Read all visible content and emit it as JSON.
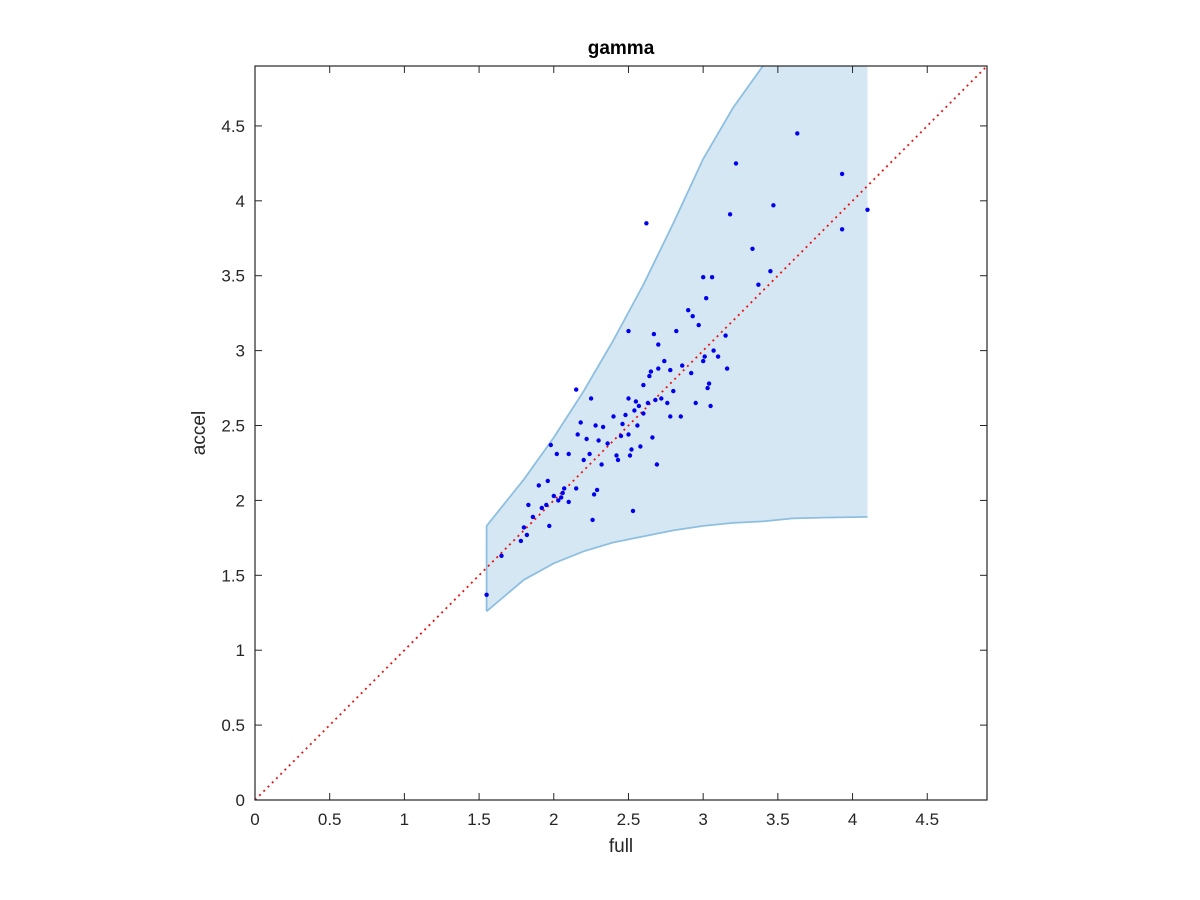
{
  "chart_data": {
    "type": "scatter",
    "title": "gamma",
    "xlabel": "full",
    "ylabel": "accel",
    "xlim": [
      0,
      4.9
    ],
    "ylim": [
      0,
      4.9
    ],
    "x_ticks": [
      0,
      0.5,
      1,
      1.5,
      2,
      2.5,
      3,
      3.5,
      4,
      4.5
    ],
    "y_ticks": [
      0,
      0.5,
      1,
      1.5,
      2,
      2.5,
      3,
      3.5,
      4,
      4.5
    ],
    "x_tick_labels": [
      "0",
      "0.5",
      "1",
      "1.5",
      "2",
      "2.5",
      "3",
      "3.5",
      "4",
      "4.5"
    ],
    "y_tick_labels": [
      "0",
      "0.5",
      "1",
      "1.5",
      "2",
      "2.5",
      "3",
      "3.5",
      "4",
      "4.5"
    ],
    "grid": false,
    "colors": {
      "points": "#0000ee",
      "band_fill": "#d6e7f4",
      "band_edge": "#8dbfe0",
      "identity_line": "#ee1111",
      "axes": "#262626"
    },
    "identity_line": {
      "x": [
        0,
        4.9
      ],
      "y": [
        0,
        4.9
      ]
    },
    "band": {
      "x_start": 1.55,
      "x_end": 4.1,
      "upper": [
        [
          1.55,
          1.83
        ],
        [
          1.8,
          2.14
        ],
        [
          2.0,
          2.42
        ],
        [
          2.2,
          2.73
        ],
        [
          2.4,
          3.07
        ],
        [
          2.6,
          3.44
        ],
        [
          2.8,
          3.85
        ],
        [
          3.0,
          4.28
        ],
        [
          3.2,
          4.62
        ],
        [
          3.4,
          4.9
        ],
        [
          4.1,
          4.9
        ]
      ],
      "lower": [
        [
          1.55,
          1.26
        ],
        [
          1.8,
          1.47
        ],
        [
          2.0,
          1.58
        ],
        [
          2.2,
          1.66
        ],
        [
          2.4,
          1.72
        ],
        [
          2.6,
          1.76
        ],
        [
          2.8,
          1.8
        ],
        [
          3.0,
          1.83
        ],
        [
          3.2,
          1.85
        ],
        [
          3.4,
          1.86
        ],
        [
          3.6,
          1.88
        ],
        [
          3.8,
          1.885
        ],
        [
          4.1,
          1.89
        ]
      ]
    },
    "series": [
      {
        "points": [
          [
            1.55,
            1.37
          ],
          [
            1.65,
            1.63
          ],
          [
            1.78,
            1.73
          ],
          [
            1.8,
            1.82
          ],
          [
            1.82,
            1.77
          ],
          [
            1.83,
            1.97
          ],
          [
            1.86,
            1.89
          ],
          [
            1.9,
            2.1
          ],
          [
            1.92,
            1.95
          ],
          [
            1.95,
            1.97
          ],
          [
            1.96,
            2.13
          ],
          [
            1.97,
            1.83
          ],
          [
            1.98,
            2.37
          ],
          [
            2.0,
            2.03
          ],
          [
            2.02,
            2.31
          ],
          [
            2.03,
            2.0
          ],
          [
            2.05,
            2.02
          ],
          [
            2.06,
            2.05
          ],
          [
            2.07,
            2.08
          ],
          [
            2.1,
            2.31
          ],
          [
            2.1,
            1.99
          ],
          [
            2.15,
            2.74
          ],
          [
            2.15,
            2.08
          ],
          [
            2.16,
            2.44
          ],
          [
            2.18,
            2.52
          ],
          [
            2.2,
            2.27
          ],
          [
            2.22,
            2.41
          ],
          [
            2.24,
            2.31
          ],
          [
            2.25,
            2.68
          ],
          [
            2.26,
            1.87
          ],
          [
            2.27,
            2.04
          ],
          [
            2.28,
            2.5
          ],
          [
            2.29,
            2.07
          ],
          [
            2.3,
            2.4
          ],
          [
            2.32,
            2.24
          ],
          [
            2.33,
            2.49
          ],
          [
            2.36,
            2.38
          ],
          [
            2.4,
            2.56
          ],
          [
            2.42,
            2.3
          ],
          [
            2.43,
            2.27
          ],
          [
            2.45,
            2.43
          ],
          [
            2.46,
            2.51
          ],
          [
            2.48,
            2.57
          ],
          [
            2.5,
            3.13
          ],
          [
            2.5,
            2.68
          ],
          [
            2.5,
            2.44
          ],
          [
            2.51,
            2.3
          ],
          [
            2.52,
            2.34
          ],
          [
            2.53,
            1.93
          ],
          [
            2.54,
            2.6
          ],
          [
            2.55,
            2.66
          ],
          [
            2.56,
            2.5
          ],
          [
            2.57,
            2.63
          ],
          [
            2.58,
            2.36
          ],
          [
            2.6,
            2.58
          ],
          [
            2.6,
            2.77
          ],
          [
            2.62,
            3.85
          ],
          [
            2.63,
            2.65
          ],
          [
            2.64,
            2.83
          ],
          [
            2.65,
            2.86
          ],
          [
            2.66,
            2.42
          ],
          [
            2.67,
            3.11
          ],
          [
            2.68,
            2.67
          ],
          [
            2.69,
            2.24
          ],
          [
            2.7,
            3.04
          ],
          [
            2.7,
            2.88
          ],
          [
            2.72,
            2.68
          ],
          [
            2.74,
            2.93
          ],
          [
            2.76,
            2.65
          ],
          [
            2.78,
            2.87
          ],
          [
            2.78,
            2.56
          ],
          [
            2.8,
            2.73
          ],
          [
            2.82,
            3.13
          ],
          [
            2.85,
            2.56
          ],
          [
            2.86,
            2.9
          ],
          [
            2.9,
            3.27
          ],
          [
            2.92,
            2.85
          ],
          [
            2.93,
            3.23
          ],
          [
            2.95,
            2.65
          ],
          [
            2.97,
            3.17
          ],
          [
            3.0,
            3.49
          ],
          [
            3.0,
            2.93
          ],
          [
            3.01,
            2.96
          ],
          [
            3.02,
            3.35
          ],
          [
            3.03,
            2.75
          ],
          [
            3.04,
            2.78
          ],
          [
            3.05,
            2.63
          ],
          [
            3.06,
            3.49
          ],
          [
            3.07,
            3.0
          ],
          [
            3.1,
            2.96
          ],
          [
            3.15,
            3.1
          ],
          [
            3.16,
            2.88
          ],
          [
            3.18,
            3.91
          ],
          [
            3.22,
            4.25
          ],
          [
            3.33,
            3.68
          ],
          [
            3.37,
            3.44
          ],
          [
            3.45,
            3.53
          ],
          [
            3.47,
            3.97
          ],
          [
            3.63,
            4.45
          ],
          [
            3.93,
            4.18
          ],
          [
            3.93,
            3.81
          ],
          [
            4.1,
            3.94
          ]
        ]
      }
    ]
  }
}
